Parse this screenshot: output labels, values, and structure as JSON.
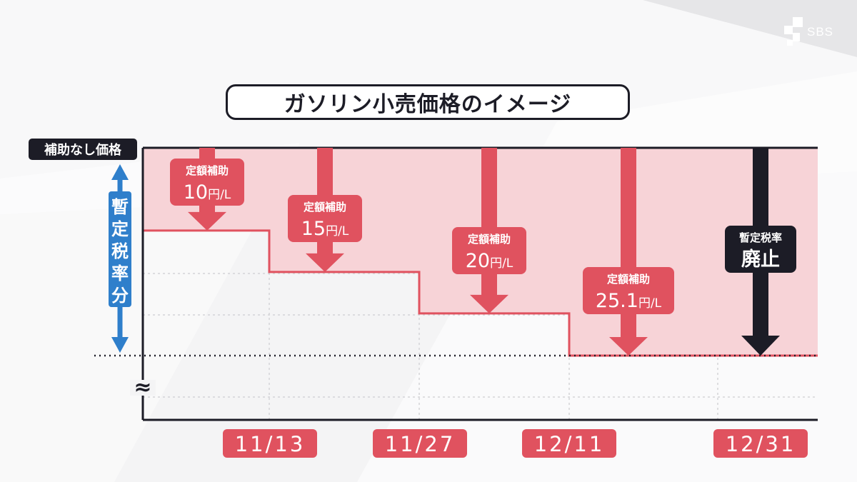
{
  "brand": {
    "logo_text": "SBS"
  },
  "chart_data": {
    "type": "step",
    "title": "ガソリン小売価格のイメージ",
    "top_label": "補助なし価格",
    "side_label": "暫定税率分",
    "x_categories": [
      "11/13",
      "11/27",
      "12/11",
      "12/31"
    ],
    "subsidy": {
      "label": "定額補助",
      "unit": "円/L",
      "values": [
        10,
        15,
        20,
        25.1
      ]
    },
    "abolition": {
      "label": "暫定税率",
      "value_label": "廃止"
    },
    "colors": {
      "fill": "#f7d3d7",
      "step_line": "#e0525f",
      "arrow": "#e0525f",
      "dark_arrow": "#1c1c26",
      "date_box": "#e0525f",
      "side_arrow": "#2f7fcb"
    }
  }
}
